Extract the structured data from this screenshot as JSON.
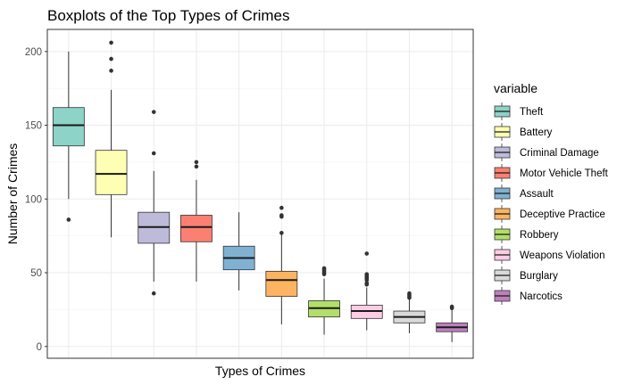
{
  "chart_data": {
    "type": "boxplot",
    "title": "Boxplots of the Top Types of Crimes",
    "xlabel": "Types of Crimes",
    "ylabel": "Number of Crimes",
    "ylim": [
      -8,
      215
    ],
    "yticks": [
      0,
      50,
      100,
      150,
      200
    ],
    "grid": true,
    "legend": {
      "title": "variable",
      "position": "right"
    },
    "series": [
      {
        "name": "Theft",
        "color": "#8DD3C7",
        "min": 100,
        "q1": 136,
        "median": 150,
        "q3": 162,
        "max": 200,
        "outliers": [
          86
        ]
      },
      {
        "name": "Battery",
        "color": "#FFFFB3",
        "min": 74,
        "q1": 103,
        "median": 117,
        "q3": 133,
        "max": 174,
        "outliers": [
          206,
          195,
          187
        ]
      },
      {
        "name": "Criminal Damage",
        "color": "#BEBADA",
        "min": 44,
        "q1": 70,
        "median": 81,
        "q3": 91,
        "max": 119,
        "outliers": [
          159,
          131,
          36
        ]
      },
      {
        "name": "Motor Vehicle Theft",
        "color": "#FB8072",
        "min": 44,
        "q1": 71,
        "median": 81,
        "q3": 89,
        "max": 113,
        "outliers": [
          125,
          122
        ]
      },
      {
        "name": "Assault",
        "color": "#80B1D3",
        "min": 38,
        "q1": 52,
        "median": 60,
        "q3": 68,
        "max": 91,
        "outliers": []
      },
      {
        "name": "Deceptive Practice",
        "color": "#FDB462",
        "min": 15,
        "q1": 34,
        "median": 45,
        "q3": 51,
        "max": 76,
        "outliers": [
          94,
          89,
          88,
          77
        ]
      },
      {
        "name": "Robbery",
        "color": "#B3DE69",
        "min": 8,
        "q1": 20,
        "median": 26,
        "q3": 31,
        "max": 46,
        "outliers": [
          53,
          52,
          51,
          50,
          49
        ]
      },
      {
        "name": "Weapons Violation",
        "color": "#FCCDE5",
        "min": 11,
        "q1": 19,
        "median": 24,
        "q3": 28,
        "max": 40,
        "outliers": [
          63,
          49,
          48,
          47,
          46,
          45,
          43,
          42
        ]
      },
      {
        "name": "Burglary",
        "color": "#D9D9D9",
        "min": 9,
        "q1": 16,
        "median": 20,
        "q3": 24,
        "max": 32,
        "outliers": [
          36,
          35,
          34,
          33
        ]
      },
      {
        "name": "Narcotics",
        "color": "#BC80BD",
        "min": 3,
        "q1": 10,
        "median": 13,
        "q3": 16,
        "max": 25,
        "outliers": [
          27,
          26
        ]
      }
    ]
  }
}
